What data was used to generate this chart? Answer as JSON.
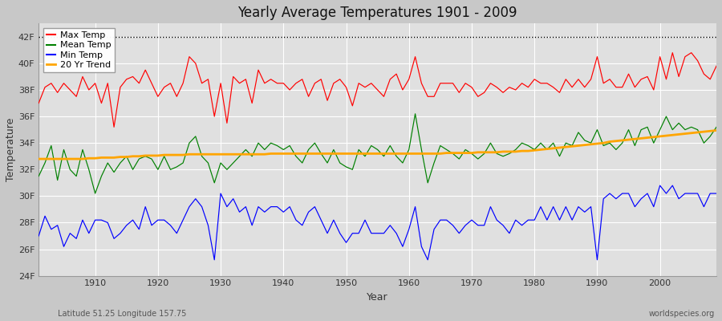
{
  "title": "Yearly Average Temperatures 1901 - 2009",
  "xlabel": "Year",
  "ylabel": "Temperature",
  "subtitle_left": "Latitude 51.25 Longitude 157.75",
  "subtitle_right": "worldspecies.org",
  "legend_labels": [
    "Max Temp",
    "Mean Temp",
    "Min Temp",
    "20 Yr Trend"
  ],
  "legend_colors": [
    "red",
    "green",
    "blue",
    "orange"
  ],
  "ylim": [
    24,
    43
  ],
  "yticks": [
    24,
    26,
    28,
    30,
    32,
    34,
    36,
    38,
    40,
    42
  ],
  "ytick_labels": [
    "24F",
    "26F",
    "28F",
    "30F",
    "32F",
    "34F",
    "36F",
    "38F",
    "40F",
    "42F"
  ],
  "xlim": [
    1901,
    2009
  ],
  "xticks": [
    1910,
    1920,
    1930,
    1940,
    1950,
    1960,
    1970,
    1980,
    1990,
    2000
  ],
  "hline_y": 42,
  "bg_color": "#e0e0e0",
  "fig_color": "#c8c8c8",
  "years": [
    1901,
    1902,
    1903,
    1904,
    1905,
    1906,
    1907,
    1908,
    1909,
    1910,
    1911,
    1912,
    1913,
    1914,
    1915,
    1916,
    1917,
    1918,
    1919,
    1920,
    1921,
    1922,
    1923,
    1924,
    1925,
    1926,
    1927,
    1928,
    1929,
    1930,
    1931,
    1932,
    1933,
    1934,
    1935,
    1936,
    1937,
    1938,
    1939,
    1940,
    1941,
    1942,
    1943,
    1944,
    1945,
    1946,
    1947,
    1948,
    1949,
    1950,
    1951,
    1952,
    1953,
    1954,
    1955,
    1956,
    1957,
    1958,
    1959,
    1960,
    1961,
    1962,
    1963,
    1964,
    1965,
    1966,
    1967,
    1968,
    1969,
    1970,
    1971,
    1972,
    1973,
    1974,
    1975,
    1976,
    1977,
    1978,
    1979,
    1980,
    1981,
    1982,
    1983,
    1984,
    1985,
    1986,
    1987,
    1988,
    1989,
    1990,
    1991,
    1992,
    1993,
    1994,
    1995,
    1996,
    1997,
    1998,
    1999,
    2000,
    2001,
    2002,
    2003,
    2004,
    2005,
    2006,
    2007,
    2008,
    2009
  ],
  "max_temp": [
    37.0,
    38.2,
    38.5,
    37.8,
    38.5,
    38.0,
    37.5,
    39.0,
    38.0,
    38.5,
    37.0,
    38.5,
    35.2,
    38.2,
    38.8,
    39.0,
    38.5,
    39.5,
    38.5,
    37.5,
    38.2,
    38.5,
    37.5,
    38.5,
    40.5,
    40.0,
    38.5,
    38.8,
    36.0,
    38.5,
    35.5,
    39.0,
    38.5,
    38.8,
    37.0,
    39.5,
    38.5,
    38.8,
    38.5,
    38.5,
    38.0,
    38.5,
    38.8,
    37.5,
    38.5,
    38.8,
    37.2,
    38.5,
    38.8,
    38.2,
    36.8,
    38.5,
    38.2,
    38.5,
    38.0,
    37.5,
    38.8,
    39.2,
    38.0,
    38.8,
    40.5,
    38.5,
    37.5,
    37.5,
    38.5,
    38.5,
    38.5,
    37.8,
    38.5,
    38.2,
    37.5,
    37.8,
    38.5,
    38.2,
    37.8,
    38.2,
    38.0,
    38.5,
    38.2,
    38.8,
    38.5,
    38.5,
    38.2,
    37.8,
    38.8,
    38.2,
    38.8,
    38.2,
    38.8,
    40.5,
    38.5,
    38.8,
    38.2,
    38.2,
    39.2,
    38.2,
    38.8,
    39.0,
    38.0,
    40.5,
    38.8,
    40.8,
    39.0,
    40.5,
    40.8,
    40.2,
    39.2,
    38.8,
    39.8
  ],
  "mean_temp": [
    31.5,
    32.5,
    33.8,
    31.2,
    33.5,
    32.0,
    31.5,
    33.5,
    32.0,
    30.2,
    31.5,
    32.5,
    31.8,
    32.5,
    33.0,
    32.0,
    32.8,
    33.0,
    32.8,
    32.0,
    33.0,
    32.0,
    32.2,
    32.5,
    34.0,
    34.5,
    33.0,
    32.5,
    31.0,
    32.5,
    32.0,
    32.5,
    33.0,
    33.5,
    33.0,
    34.0,
    33.5,
    34.0,
    33.8,
    33.5,
    33.8,
    33.0,
    32.5,
    33.5,
    34.0,
    33.2,
    32.5,
    33.5,
    32.5,
    32.2,
    32.0,
    33.5,
    33.0,
    33.8,
    33.5,
    33.0,
    33.8,
    33.0,
    32.5,
    33.5,
    36.2,
    33.5,
    31.0,
    32.5,
    33.8,
    33.5,
    33.2,
    32.8,
    33.5,
    33.2,
    32.8,
    33.2,
    34.0,
    33.2,
    33.0,
    33.2,
    33.5,
    34.0,
    33.8,
    33.5,
    34.0,
    33.5,
    34.0,
    33.0,
    34.0,
    33.8,
    34.8,
    34.2,
    34.0,
    35.0,
    33.8,
    34.0,
    33.5,
    34.0,
    35.0,
    33.8,
    35.0,
    35.2,
    34.0,
    35.0,
    36.0,
    35.0,
    35.5,
    35.0,
    35.2,
    35.0,
    34.0,
    34.5,
    35.2
  ],
  "min_temp": [
    27.0,
    28.5,
    27.5,
    27.8,
    26.2,
    27.2,
    26.8,
    28.2,
    27.2,
    28.2,
    28.2,
    28.0,
    26.8,
    27.2,
    27.8,
    28.2,
    27.5,
    29.2,
    27.8,
    28.2,
    28.2,
    27.8,
    27.2,
    28.2,
    29.2,
    29.8,
    29.2,
    27.8,
    25.2,
    30.2,
    29.2,
    29.8,
    28.8,
    29.2,
    27.8,
    29.2,
    28.8,
    29.2,
    29.2,
    28.8,
    29.2,
    28.2,
    27.8,
    28.8,
    29.2,
    28.2,
    27.2,
    28.2,
    27.2,
    26.5,
    27.2,
    27.2,
    28.2,
    27.2,
    27.2,
    27.2,
    27.8,
    27.2,
    26.2,
    27.5,
    29.2,
    26.2,
    25.2,
    27.5,
    28.2,
    28.2,
    27.8,
    27.2,
    27.8,
    28.2,
    27.8,
    27.8,
    29.2,
    28.2,
    27.8,
    27.2,
    28.2,
    27.8,
    28.2,
    28.2,
    29.2,
    28.2,
    29.2,
    28.2,
    29.2,
    28.2,
    29.2,
    28.8,
    29.2,
    25.2,
    29.8,
    30.2,
    29.8,
    30.2,
    30.2,
    29.2,
    29.8,
    30.2,
    29.2,
    30.8,
    30.2,
    30.8,
    29.8,
    30.2,
    30.2,
    30.2,
    29.2,
    30.2,
    30.2
  ],
  "trend_temp": [
    32.8,
    32.8,
    32.8,
    32.8,
    32.8,
    32.8,
    32.8,
    32.8,
    32.85,
    32.85,
    32.9,
    32.9,
    32.9,
    32.95,
    32.95,
    33.0,
    33.0,
    33.05,
    33.05,
    33.05,
    33.1,
    33.1,
    33.1,
    33.1,
    33.15,
    33.15,
    33.15,
    33.15,
    33.15,
    33.15,
    33.15,
    33.15,
    33.15,
    33.15,
    33.15,
    33.15,
    33.15,
    33.2,
    33.2,
    33.2,
    33.2,
    33.2,
    33.2,
    33.2,
    33.2,
    33.2,
    33.2,
    33.2,
    33.2,
    33.2,
    33.2,
    33.2,
    33.2,
    33.2,
    33.2,
    33.2,
    33.2,
    33.2,
    33.2,
    33.2,
    33.2,
    33.2,
    33.2,
    33.2,
    33.2,
    33.25,
    33.25,
    33.25,
    33.25,
    33.25,
    33.3,
    33.3,
    33.3,
    33.3,
    33.35,
    33.35,
    33.35,
    33.4,
    33.4,
    33.45,
    33.5,
    33.55,
    33.6,
    33.65,
    33.7,
    33.75,
    33.8,
    33.85,
    33.9,
    33.95,
    34.0,
    34.1,
    34.15,
    34.2,
    34.25,
    34.3,
    34.35,
    34.4,
    34.45,
    34.5,
    34.55,
    34.6,
    34.65,
    34.7,
    34.75,
    34.8,
    34.85,
    34.9,
    34.95
  ]
}
